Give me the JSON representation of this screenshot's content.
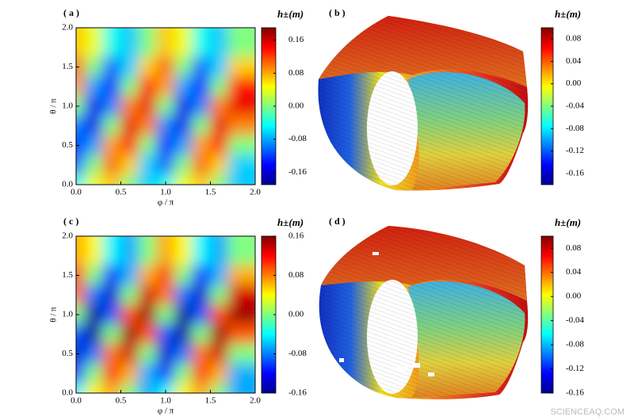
{
  "chart_data": [
    {
      "type": "heatmap",
      "panel": "( a )",
      "xlabel": "φ / π",
      "ylabel": "θ / π",
      "colorbar_label": "h±(m)",
      "x": [
        0.1,
        0.3,
        0.5,
        0.7,
        0.9,
        1.1,
        1.3,
        1.5,
        1.7,
        1.9
      ],
      "y": [
        0.125,
        0.375,
        0.625,
        0.875,
        1.125,
        1.375,
        1.625,
        1.875
      ],
      "z": [
        [
          -0.042,
          0.042,
          0.068,
          0,
          -0.068,
          -0.042,
          0.042,
          0.068,
          0,
          -0.068
        ],
        [
          -0.106,
          0,
          0.106,
          0.065,
          -0.065,
          -0.106,
          0,
          0.106,
          0.065,
          -0.065
        ],
        [
          -0.134,
          -0.083,
          0.083,
          0.134,
          0,
          -0.134,
          -0.083,
          0.083,
          0.134,
          0
        ],
        [
          -0.093,
          -0.15,
          0,
          0.15,
          0.093,
          -0.093,
          -0.15,
          0,
          0.15,
          0.093
        ],
        [
          0,
          -0.15,
          -0.093,
          0.093,
          0.15,
          0,
          -0.15,
          -0.093,
          0.093,
          0.15
        ],
        [
          0.083,
          -0.083,
          -0.134,
          0,
          0.134,
          0.083,
          -0.083,
          -0.134,
          0,
          0.134
        ],
        [
          0.106,
          0,
          -0.106,
          -0.065,
          0.065,
          0.106,
          0,
          -0.106,
          -0.065,
          0.065
        ],
        [
          0.068,
          0.042,
          -0.042,
          -0.068,
          0,
          0.068,
          0.042,
          -0.042,
          -0.068,
          0
        ]
      ],
      "xlim": [
        0,
        2
      ],
      "ylim": [
        0,
        2
      ],
      "xticks": [
        {
          "value": 0,
          "label": "0.0"
        },
        0.5,
        {
          "value": 1,
          "label": "1.0"
        },
        1.5,
        {
          "value": 2,
          "label": "2.0"
        }
      ],
      "yticks": [
        {
          "value": 0,
          "label": "0.0"
        },
        0.5,
        {
          "value": 1,
          "label": "1.0"
        },
        1.5,
        {
          "value": 2,
          "label": "2.0"
        }
      ],
      "zlim": [
        -0.19,
        0.19
      ],
      "zticks": [
        -0.16,
        -0.08,
        {
          "value": 0,
          "label": "0.00"
        },
        0.08,
        0.16
      ]
    },
    {
      "type": "surface",
      "panel": "( b )",
      "colorbar_label": "h±(m)",
      "zlim": [
        -0.18,
        0.1
      ],
      "zticks": [
        -0.16,
        -0.12,
        -0.08,
        -0.04,
        {
          "value": 0,
          "label": "0.00"
        },
        0.04,
        0.08
      ]
    },
    {
      "type": "heatmap",
      "panel": "( c )",
      "xlabel": "φ / π",
      "ylabel": "θ / π",
      "colorbar_label": "h±(m)",
      "x": [
        0.1,
        0.3,
        0.5,
        0.7,
        0.9,
        1.1,
        1.3,
        1.5,
        1.7,
        1.9
      ],
      "y": [
        0.125,
        0.375,
        0.625,
        0.875,
        1.125,
        1.375,
        1.625,
        1.875
      ],
      "z": [
        [
          -0.042,
          0.042,
          0.068,
          0,
          -0.068,
          -0.042,
          0.042,
          0.068,
          0,
          -0.068
        ],
        [
          -0.106,
          0,
          0.106,
          0.065,
          -0.065,
          -0.106,
          0,
          0.106,
          0.065,
          -0.065
        ],
        [
          -0.134,
          -0.083,
          0.083,
          0.134,
          0,
          -0.134,
          -0.083,
          0.083,
          0.134,
          0
        ],
        [
          -0.093,
          -0.15,
          0,
          0.15,
          0.093,
          -0.093,
          -0.15,
          0,
          0.15,
          0.093
        ],
        [
          0,
          -0.15,
          -0.093,
          0.093,
          0.15,
          0,
          -0.15,
          -0.093,
          0.093,
          0.15
        ],
        [
          0.083,
          -0.083,
          -0.134,
          0,
          0.134,
          0.083,
          -0.083,
          -0.134,
          0,
          0.134
        ],
        [
          0.106,
          0,
          -0.106,
          -0.065,
          0.065,
          0.106,
          0,
          -0.106,
          -0.065,
          0.065
        ],
        [
          0.068,
          0.042,
          -0.042,
          -0.068,
          0,
          0.068,
          0.042,
          -0.042,
          -0.068,
          0
        ]
      ],
      "xlim": [
        0,
        2
      ],
      "ylim": [
        0,
        2
      ],
      "xticks": [
        {
          "value": 0,
          "label": "0.0"
        },
        0.5,
        {
          "value": 1,
          "label": "1.0"
        },
        1.5,
        {
          "value": 2,
          "label": "2.0"
        }
      ],
      "yticks": [
        {
          "value": 0,
          "label": "0.0"
        },
        0.5,
        {
          "value": 1,
          "label": "1.0"
        },
        1.5,
        {
          "value": 2,
          "label": "2.0"
        }
      ],
      "zlim": [
        -0.16,
        0.16
      ],
      "zticks": [
        -0.16,
        -0.08,
        {
          "value": 0,
          "label": "0.00"
        },
        0.08,
        0.16
      ]
    },
    {
      "type": "surface",
      "panel": "( d )",
      "colorbar_label": "h±(m)",
      "zlim": [
        -0.16,
        0.1
      ],
      "zticks": [
        -0.16,
        -0.12,
        -0.08,
        -0.04,
        {
          "value": 0,
          "label": "0.00"
        },
        0.04,
        0.08
      ]
    }
  ],
  "watermark": "SCIENCEAQ.COM"
}
